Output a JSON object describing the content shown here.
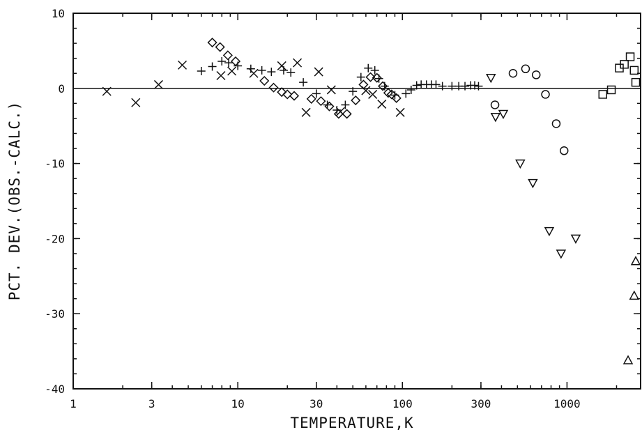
{
  "chart_data": {
    "type": "scatter",
    "title": "",
    "xlabel": "TEMPERATURE,K",
    "ylabel": "PCT. DEV.(OBS.-CALC.)",
    "x_scale": "log",
    "xlim": [
      1,
      2800
    ],
    "ylim": [
      -40,
      10
    ],
    "x_ticks": [
      1,
      3,
      10,
      30,
      100,
      300,
      1000
    ],
    "x_tick_labels": [
      "1",
      "3",
      "10",
      "30",
      "100",
      "300",
      "1000"
    ],
    "y_ticks": [
      10,
      0,
      -10,
      -20,
      -30,
      -40
    ],
    "y_tick_labels": [
      "10",
      "0",
      "-10",
      "-20",
      "-30",
      "-40"
    ],
    "zero_line": true,
    "grid": false,
    "legend": "none",
    "series": [
      {
        "marker": "x",
        "points": [
          [
            1.6,
            -0.4
          ],
          [
            2.4,
            -1.9
          ],
          [
            3.3,
            0.5
          ],
          [
            4.6,
            3.1
          ],
          [
            7.9,
            1.7
          ],
          [
            9.2,
            2.3
          ],
          [
            12.5,
            2.0
          ],
          [
            18.5,
            3.0
          ],
          [
            23,
            3.4
          ],
          [
            26,
            -3.2
          ],
          [
            31,
            2.2
          ],
          [
            37,
            -0.2
          ],
          [
            42,
            -3.1
          ],
          [
            60,
            -0.3
          ],
          [
            66,
            -0.8
          ],
          [
            75,
            -2.1
          ],
          [
            97,
            -3.2
          ]
        ]
      },
      {
        "marker": "plus",
        "points": [
          [
            6,
            2.3
          ],
          [
            7,
            2.9
          ],
          [
            8,
            3.6
          ],
          [
            8.8,
            3.4
          ],
          [
            10,
            3.0
          ],
          [
            12,
            2.6
          ],
          [
            14,
            2.4
          ],
          [
            16,
            2.2
          ],
          [
            19,
            2.4
          ],
          [
            21,
            2.1
          ],
          [
            25,
            0.8
          ],
          [
            30,
            -0.7
          ],
          [
            35,
            -2.2
          ],
          [
            40,
            -2.9
          ],
          [
            45,
            -2.2
          ],
          [
            50,
            -0.4
          ],
          [
            56,
            1.5
          ],
          [
            62,
            2.7
          ],
          [
            68,
            2.4
          ],
          [
            72,
            1.3
          ],
          [
            78,
            0.3
          ],
          [
            90,
            -0.9
          ],
          [
            105,
            -0.7
          ],
          [
            113,
            -0.2
          ],
          [
            122,
            0.4
          ],
          [
            130,
            0.5
          ],
          [
            140,
            0.5
          ],
          [
            150,
            0.5
          ],
          [
            160,
            0.5
          ],
          [
            175,
            0.3
          ],
          [
            200,
            0.3
          ],
          [
            220,
            0.3
          ],
          [
            240,
            0.3
          ],
          [
            260,
            0.4
          ],
          [
            275,
            0.4
          ],
          [
            290,
            0.3
          ]
        ]
      },
      {
        "marker": "diamond",
        "points": [
          [
            7,
            6.1
          ],
          [
            7.8,
            5.5
          ],
          [
            8.7,
            4.4
          ],
          [
            9.7,
            3.6
          ],
          [
            14.5,
            1.0
          ],
          [
            16.5,
            0.1
          ],
          [
            18.5,
            -0.5
          ],
          [
            20,
            -0.8
          ],
          [
            22,
            -1.0
          ],
          [
            28,
            -1.4
          ],
          [
            32,
            -1.7
          ],
          [
            36,
            -2.4
          ],
          [
            41,
            -3.4
          ],
          [
            46,
            -3.4
          ],
          [
            52,
            -1.6
          ],
          [
            58,
            0.5
          ],
          [
            64,
            1.5
          ],
          [
            70,
            1.4
          ],
          [
            76,
            0.3
          ],
          [
            82,
            -0.6
          ],
          [
            86,
            -0.8
          ],
          [
            92,
            -1.3
          ]
        ]
      },
      {
        "marker": "down-triangle",
        "points": [
          [
            345,
            1.4
          ],
          [
            368,
            -3.8
          ],
          [
            410,
            -3.4
          ],
          [
            520,
            -10
          ],
          [
            620,
            -12.6
          ],
          [
            780,
            -19
          ],
          [
            920,
            -22
          ],
          [
            1130,
            -20
          ]
        ]
      },
      {
        "marker": "circle",
        "points": [
          [
            365,
            -2.2
          ],
          [
            470,
            2.0
          ],
          [
            560,
            2.6
          ],
          [
            650,
            1.8
          ],
          [
            740,
            -0.8
          ],
          [
            860,
            -4.7
          ],
          [
            960,
            -8.3
          ]
        ]
      },
      {
        "marker": "square",
        "points": [
          [
            1650,
            -0.8
          ],
          [
            1860,
            -0.2
          ],
          [
            2080,
            2.7
          ],
          [
            2230,
            3.2
          ],
          [
            2420,
            4.2
          ],
          [
            2560,
            2.4
          ],
          [
            2720,
            0.8
          ]
        ]
      },
      {
        "marker": "up-triangle",
        "points": [
          [
            2350,
            -36.2
          ],
          [
            2560,
            -27.6
          ],
          [
            2800,
            -23
          ]
        ]
      }
    ]
  }
}
